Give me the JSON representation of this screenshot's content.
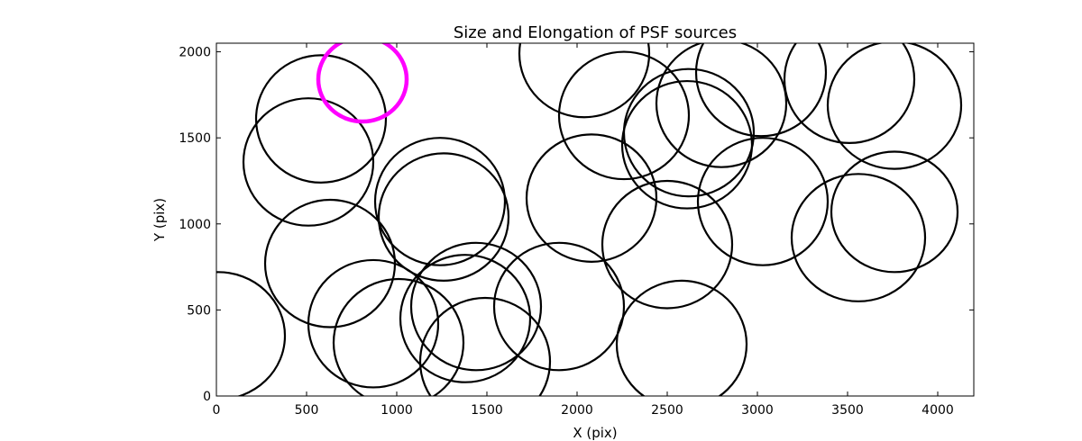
{
  "chart_data": {
    "type": "scatter",
    "title": "Size and Elongation of PSF sources",
    "xlabel": "X (pix)",
    "ylabel": "Y (pix)",
    "xlim": [
      0,
      4200
    ],
    "ylim": [
      0,
      2050
    ],
    "xticks": [
      0,
      500,
      1000,
      1500,
      2000,
      2500,
      3000,
      3500,
      4000
    ],
    "yticks": [
      0,
      500,
      1000,
      1500,
      2000
    ],
    "grid": false,
    "legend": "none",
    "colors": {
      "normal": "#000000",
      "highlight": "#ff00ff"
    },
    "series": [
      {
        "marker": "ellipse",
        "points": [
          {
            "x": 10,
            "y": 350,
            "rx": 370,
            "ry": 370,
            "angle": 0,
            "highlight": false
          },
          {
            "x": 510,
            "y": 1360,
            "rx": 360,
            "ry": 370,
            "angle": 0,
            "highlight": false
          },
          {
            "x": 580,
            "y": 1610,
            "rx": 360,
            "ry": 370,
            "angle": 0,
            "highlight": false
          },
          {
            "x": 630,
            "y": 770,
            "rx": 360,
            "ry": 370,
            "angle": 0,
            "highlight": false
          },
          {
            "x": 810,
            "y": 1840,
            "rx": 245,
            "ry": 245,
            "angle": 0,
            "highlight": true
          },
          {
            "x": 870,
            "y": 420,
            "rx": 360,
            "ry": 370,
            "angle": 0,
            "highlight": false
          },
          {
            "x": 1240,
            "y": 1130,
            "rx": 360,
            "ry": 370,
            "angle": 0,
            "highlight": false
          },
          {
            "x": 1260,
            "y": 1040,
            "rx": 360,
            "ry": 370,
            "angle": 0,
            "highlight": false
          },
          {
            "x": 1380,
            "y": 450,
            "rx": 360,
            "ry": 370,
            "angle": 0,
            "highlight": false
          },
          {
            "x": 1010,
            "y": 310,
            "rx": 360,
            "ry": 370,
            "angle": 0,
            "highlight": false
          },
          {
            "x": 1440,
            "y": 520,
            "rx": 360,
            "ry": 370,
            "angle": 0,
            "highlight": false
          },
          {
            "x": 1490,
            "y": 200,
            "rx": 360,
            "ry": 370,
            "angle": 0,
            "highlight": false
          },
          {
            "x": 1900,
            "y": 520,
            "rx": 360,
            "ry": 370,
            "angle": 0,
            "highlight": false
          },
          {
            "x": 2040,
            "y": 1990,
            "rx": 360,
            "ry": 370,
            "angle": 0,
            "highlight": false
          },
          {
            "x": 2260,
            "y": 1630,
            "rx": 360,
            "ry": 370,
            "angle": 0,
            "highlight": false
          },
          {
            "x": 2080,
            "y": 1150,
            "rx": 360,
            "ry": 370,
            "angle": 0,
            "highlight": false
          },
          {
            "x": 2500,
            "y": 880,
            "rx": 360,
            "ry": 370,
            "angle": 0,
            "highlight": false
          },
          {
            "x": 2580,
            "y": 300,
            "rx": 360,
            "ry": 370,
            "angle": 0,
            "highlight": false
          },
          {
            "x": 2610,
            "y": 1460,
            "rx": 360,
            "ry": 370,
            "angle": 0,
            "highlight": false
          },
          {
            "x": 2620,
            "y": 1530,
            "rx": 360,
            "ry": 370,
            "angle": 0,
            "highlight": false
          },
          {
            "x": 2800,
            "y": 1700,
            "rx": 360,
            "ry": 370,
            "angle": 0,
            "highlight": false
          },
          {
            "x": 3020,
            "y": 1880,
            "rx": 360,
            "ry": 370,
            "angle": 0,
            "highlight": false
          },
          {
            "x": 3030,
            "y": 1130,
            "rx": 360,
            "ry": 370,
            "angle": 0,
            "highlight": false
          },
          {
            "x": 3510,
            "y": 1840,
            "rx": 360,
            "ry": 370,
            "angle": 0,
            "highlight": false
          },
          {
            "x": 3560,
            "y": 920,
            "rx": 370,
            "ry": 370,
            "angle": 0,
            "highlight": false
          },
          {
            "x": 3760,
            "y": 1070,
            "rx": 350,
            "ry": 350,
            "angle": 0,
            "highlight": false
          },
          {
            "x": 3760,
            "y": 1690,
            "rx": 370,
            "ry": 370,
            "angle": 0,
            "highlight": false
          }
        ]
      }
    ]
  }
}
